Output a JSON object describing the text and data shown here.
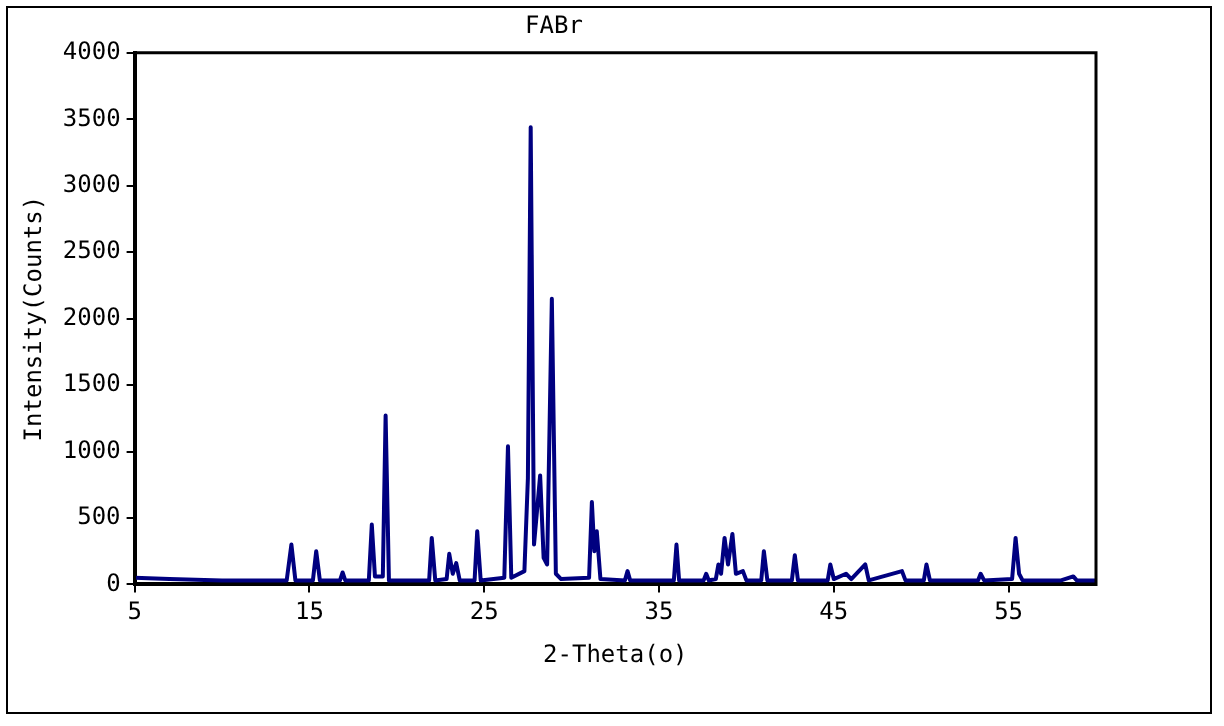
{
  "chart_data": {
    "type": "line",
    "title": "FABr",
    "xlabel": "2-Theta(o)",
    "ylabel": "Intensity(Counts)",
    "x": [
      5,
      7,
      10,
      13.7,
      13.97,
      14.2,
      15.2,
      15.39,
      15.6,
      16.75,
      16.9,
      17.05,
      18.4,
      18.57,
      18.75,
      19.2,
      19.36,
      19.55,
      21.85,
      22.0,
      22.2,
      22.85,
      23.0,
      23.2,
      23.4,
      23.6,
      24.45,
      24.6,
      24.8,
      26.15,
      26.36,
      26.55,
      27.3,
      27.5,
      27.66,
      27.85,
      28.2,
      28.4,
      28.6,
      28.87,
      29.1,
      29.4,
      31.0,
      31.16,
      31.3,
      31.44,
      31.65,
      33.05,
      33.2,
      33.35,
      35.85,
      36.0,
      36.15,
      37.55,
      37.7,
      37.85,
      38.25,
      38.4,
      38.55,
      38.75,
      38.95,
      39.2,
      39.4,
      39.8,
      40.0,
      40.85,
      41.0,
      41.2,
      42.6,
      42.77,
      42.95,
      44.65,
      44.8,
      45.0,
      45.7,
      46.0,
      46.8,
      47.0,
      48.9,
      49.1,
      50.15,
      50.3,
      50.5,
      53.25,
      53.4,
      53.6,
      55.2,
      55.4,
      55.6,
      55.8,
      58,
      58.7,
      58.9,
      60
    ],
    "series": [
      {
        "color": "#000080",
        "values": [
          50,
          40,
          30,
          30,
          300,
          30,
          30,
          250,
          30,
          30,
          90,
          30,
          30,
          450,
          60,
          60,
          1270,
          30,
          30,
          350,
          30,
          40,
          230,
          80,
          160,
          30,
          30,
          400,
          30,
          50,
          1040,
          50,
          100,
          800,
          3440,
          300,
          820,
          200,
          150,
          2150,
          80,
          40,
          50,
          620,
          250,
          400,
          40,
          30,
          100,
          30,
          30,
          300,
          30,
          30,
          80,
          30,
          40,
          150,
          80,
          350,
          150,
          380,
          80,
          100,
          30,
          30,
          250,
          30,
          30,
          220,
          30,
          30,
          150,
          40,
          80,
          40,
          150,
          30,
          100,
          30,
          30,
          150,
          30,
          30,
          80,
          30,
          40,
          350,
          80,
          30,
          30,
          60,
          30,
          30
        ]
      }
    ],
    "xlim": [
      5,
      60
    ],
    "xticks": [
      5,
      15,
      25,
      35,
      45,
      55
    ],
    "ylim": [
      0,
      4000
    ],
    "yticks": [
      0,
      500,
      1000,
      1500,
      2000,
      2500,
      3000,
      3500,
      4000
    ],
    "grid": false,
    "legend": false,
    "marker": "none",
    "line_style": "solid"
  }
}
